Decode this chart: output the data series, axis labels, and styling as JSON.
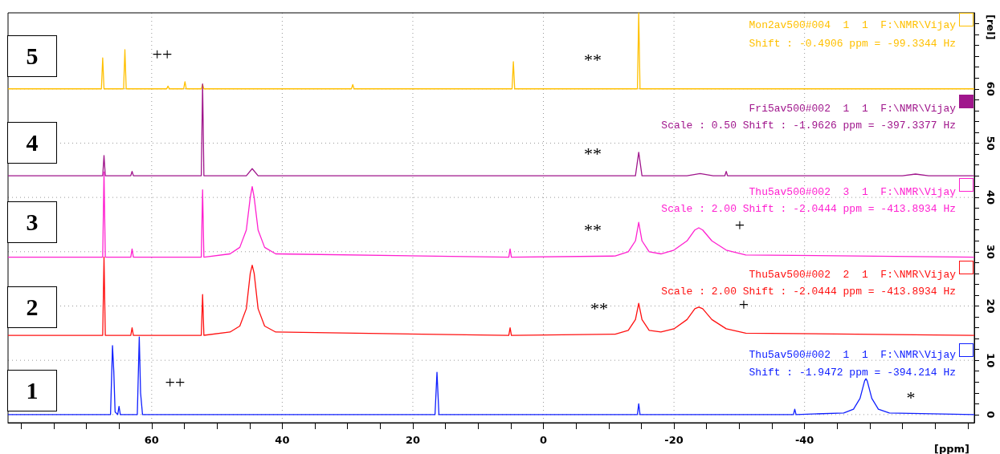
{
  "chart_data": {
    "type": "line",
    "xlabel": "[ppm]",
    "ylabel": "[rel]",
    "xlim": [
      82,
      -66
    ],
    "ylim": [
      -1.5,
      74
    ],
    "xticks": [
      {
        "value": 80,
        "label": null
      },
      {
        "value": 75,
        "label": null
      },
      {
        "value": 70,
        "label": null
      },
      {
        "value": 65,
        "label": null
      },
      60,
      {
        "value": 55,
        "label": null
      },
      {
        "value": 50,
        "label": null
      },
      {
        "value": 45,
        "label": null
      },
      40,
      {
        "value": 35,
        "label": null
      },
      {
        "value": 30,
        "label": null
      },
      {
        "value": 25,
        "label": null
      },
      20,
      {
        "value": 15,
        "label": null
      },
      {
        "value": 10,
        "label": null
      },
      {
        "value": 5,
        "label": null
      },
      0,
      {
        "value": -5,
        "label": null
      },
      {
        "value": -10,
        "label": null
      },
      {
        "value": -15,
        "label": null
      },
      -20,
      {
        "value": -25,
        "label": null
      },
      {
        "value": -30,
        "label": null
      },
      {
        "value": -35,
        "label": null
      },
      -40,
      {
        "value": -45,
        "label": null
      },
      {
        "value": -50,
        "label": null
      },
      {
        "value": -55,
        "label": null
      },
      {
        "value": -60,
        "label": null
      },
      {
        "value": -65,
        "label": null
      }
    ],
    "yticks": [
      0,
      {
        "value": 2,
        "label": null
      },
      {
        "value": 4,
        "label": null
      },
      {
        "value": 6,
        "label": null
      },
      {
        "value": 8,
        "label": null
      },
      10,
      {
        "value": 12,
        "label": null
      },
      {
        "value": 14,
        "label": null
      },
      {
        "value": 16,
        "label": null
      },
      {
        "value": 18,
        "label": null
      },
      20,
      {
        "value": 22,
        "label": null
      },
      {
        "value": 24,
        "label": null
      },
      {
        "value": 26,
        "label": null
      },
      {
        "value": 28,
        "label": null
      },
      30,
      {
        "value": 32,
        "label": null
      },
      {
        "value": 34,
        "label": null
      },
      {
        "value": 36,
        "label": null
      },
      {
        "value": 38,
        "label": null
      },
      40,
      {
        "value": 42,
        "label": null
      },
      {
        "value": 44,
        "label": null
      },
      {
        "value": 46,
        "label": null
      },
      {
        "value": 48,
        "label": null
      },
      50,
      {
        "value": 52,
        "label": null
      },
      {
        "value": 54,
        "label": null
      },
      {
        "value": 56,
        "label": null
      },
      {
        "value": 58,
        "label": null
      },
      60,
      {
        "value": 62,
        "label": null
      },
      {
        "value": 64,
        "label": null
      },
      {
        "value": 66,
        "label": null
      },
      {
        "value": 68,
        "label": null
      },
      {
        "value": 70,
        "label": null
      },
      {
        "value": 72,
        "label": null
      }
    ],
    "grid": true,
    "series": [
      {
        "color": "#ffc000",
        "x": [
          82,
          67.7,
          67.5,
          67.3,
          64.3,
          64.1,
          63.9,
          57.7,
          57.5,
          57.3,
          55.1,
          54.9,
          54.7,
          52.4,
          52.2,
          52.0,
          29.4,
          29.2,
          29.0,
          4.8,
          4.6,
          4.4,
          -14.4,
          -14.6,
          -14.8,
          -66
        ],
        "values": [
          60,
          60,
          65.7,
          60,
          60,
          67.2,
          60,
          60,
          60.5,
          60,
          60,
          61.3,
          60,
          60,
          60.8,
          60,
          60,
          60.8,
          60,
          60,
          65,
          60,
          60,
          74,
          60,
          60
        ]
      },
      {
        "color": "#a0168c",
        "x": [
          82,
          67.5,
          67.3,
          67.1,
          63.2,
          63.0,
          62.8,
          52.4,
          52.2,
          52.1,
          52.0,
          45.5,
          44.6,
          43.7,
          -14.1,
          -14.6,
          -15.1,
          -22,
          -24,
          -26,
          -27.8,
          -28,
          -28.2,
          -55,
          -57,
          -59,
          -66
        ],
        "values": [
          44,
          44,
          47.7,
          44,
          44,
          44.8,
          44,
          44,
          60.9,
          52.7,
          44,
          44,
          45.3,
          44,
          44,
          48.3,
          44,
          44,
          44.4,
          44,
          44,
          44.8,
          44,
          44,
          44.3,
          44,
          44
        ]
      },
      {
        "color": "#ff20d0",
        "x": [
          82,
          67.5,
          67.3,
          67.1,
          63.2,
          63.0,
          62.8,
          52.4,
          52.2,
          52.0,
          48,
          46.5,
          45.5,
          44.9,
          44.6,
          44.3,
          43.7,
          42.7,
          41,
          5.3,
          5.1,
          4.9,
          -11,
          -13,
          -14.1,
          -14.6,
          -15.1,
          -16.2,
          -18,
          -20,
          -22,
          -23.2,
          -23.8,
          -24.4,
          -25.8,
          -28,
          -31,
          -66
        ],
        "values": [
          29,
          29,
          44.7,
          29,
          29,
          30.5,
          29,
          29,
          41.4,
          29,
          29.6,
          30.8,
          34,
          40,
          42,
          40,
          34,
          30.8,
          29.6,
          29,
          30.5,
          29,
          29.2,
          30,
          32,
          35.4,
          32,
          30,
          29.6,
          30.3,
          32,
          34,
          34.4,
          34,
          32,
          30.3,
          29.4,
          29
        ]
      },
      {
        "color": "#ff1010",
        "x": [
          82,
          67.5,
          67.3,
          67.1,
          63.2,
          63.0,
          62.8,
          52.4,
          52.2,
          52.0,
          48,
          46.5,
          45.5,
          44.9,
          44.6,
          44.3,
          43.7,
          42.7,
          41,
          5.3,
          5.1,
          4.9,
          -11,
          -13,
          -14.1,
          -14.6,
          -15.1,
          -16.2,
          -18,
          -20,
          -22,
          -23.2,
          -23.8,
          -24.4,
          -25.8,
          -28,
          -31,
          -66
        ],
        "values": [
          14.6,
          14.6,
          29,
          14.6,
          14.6,
          16,
          14.6,
          14.6,
          22.1,
          14.6,
          15.2,
          16.3,
          19.5,
          26,
          27.5,
          26,
          19.5,
          16.3,
          15.2,
          14.6,
          16,
          14.6,
          14.8,
          15.5,
          17.5,
          20.5,
          17.5,
          15.5,
          15.2,
          15.8,
          17.5,
          19.5,
          19.8,
          19.5,
          17.5,
          15.8,
          15,
          14.6
        ]
      },
      {
        "color": "#1020ff",
        "x": [
          82,
          66.3,
          66.0,
          65.8,
          65.6,
          65.2,
          65.0,
          64.8,
          62.2,
          61.9,
          61.7,
          61.4,
          16.6,
          16.3,
          16.0,
          -14.4,
          -14.6,
          -14.8,
          -38.3,
          -38.5,
          -38.7,
          -46,
          -47.5,
          -48.5,
          -49.2,
          -49.4,
          -49.6,
          -50.3,
          -51.3,
          -53,
          -66
        ],
        "values": [
          0,
          0,
          12.7,
          7.9,
          0.5,
          0,
          1.5,
          0,
          0,
          14.3,
          4,
          0,
          0,
          7.8,
          0,
          0,
          2,
          0,
          0,
          1,
          0,
          0.3,
          1,
          3,
          6.2,
          6.6,
          6.2,
          3,
          1,
          0.3,
          0
        ]
      }
    ],
    "annotations": [
      "5",
      "4",
      "3",
      "2",
      "1",
      "++",
      "**",
      "**",
      "**",
      "+",
      "**",
      "+",
      "++",
      "*",
      "Mon2av500#004  1  1  F:\\NMR\\Vijay",
      "Shift : -0.4906 ppm = -99.3344 Hz",
      "Fri5av500#002  1  1  F:\\NMR\\Vijay",
      "Scale : 0.50 Shift : -1.9626 ppm = -397.3377 Hz",
      "Thu5av500#002  3  1  F:\\NMR\\Vijay",
      "Scale : 2.00 Shift : -2.0444 ppm = -413.8934 Hz",
      "Thu5av500#002  2  1  F:\\NMR\\Vijay",
      "Scale : 2.00 Shift : -2.0444 ppm = -413.8934 Hz",
      "Thu5av500#002  1  1  F:\\NMR\\Vijay",
      "Shift : -1.9472 ppm = -394.214 Hz"
    ]
  }
}
